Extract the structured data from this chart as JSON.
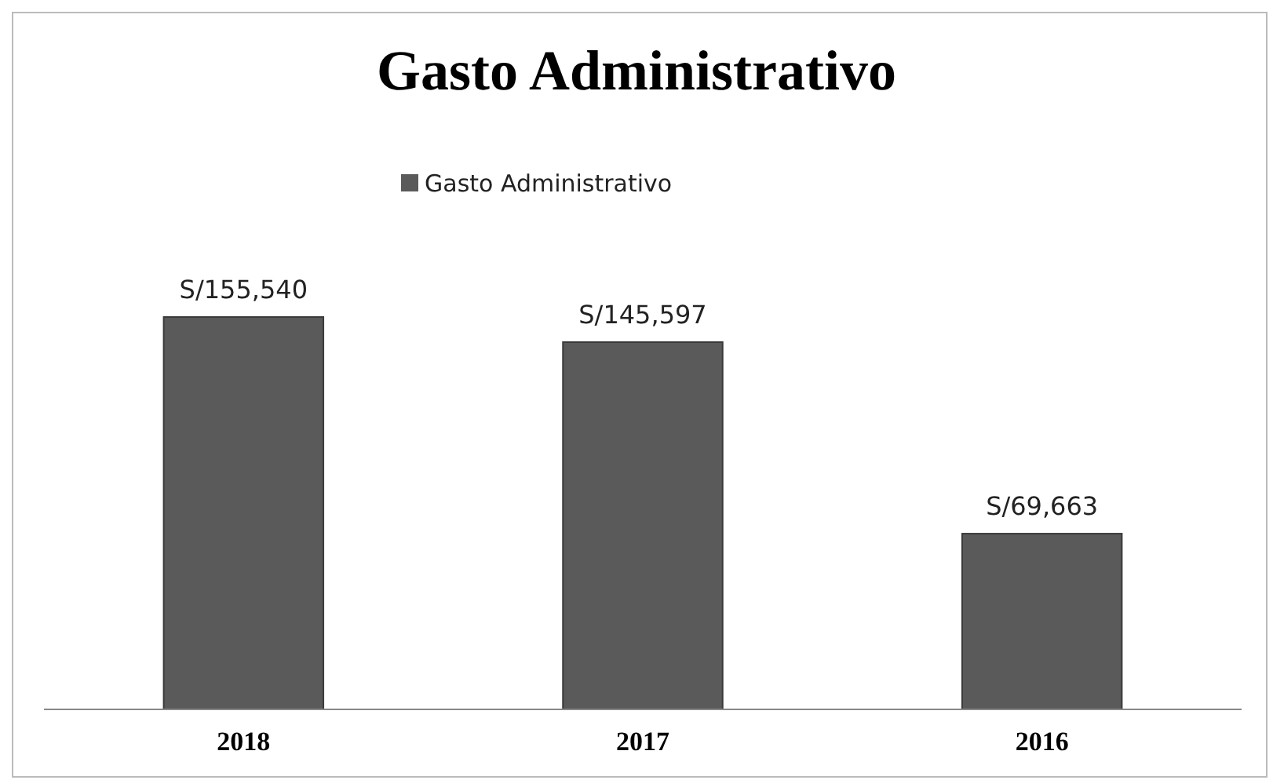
{
  "chart_data": {
    "type": "bar",
    "title": "Gasto Administrativo",
    "categories": [
      "2018",
      "2017",
      "2016"
    ],
    "series": [
      {
        "name": "Gasto Administrativo",
        "color": "#5a5a5a",
        "values": [
          155540,
          145597,
          69663
        ],
        "value_labels": [
          "S/155,540",
          "S/145,597",
          "S/69,663"
        ]
      }
    ],
    "legend": "top"
  }
}
